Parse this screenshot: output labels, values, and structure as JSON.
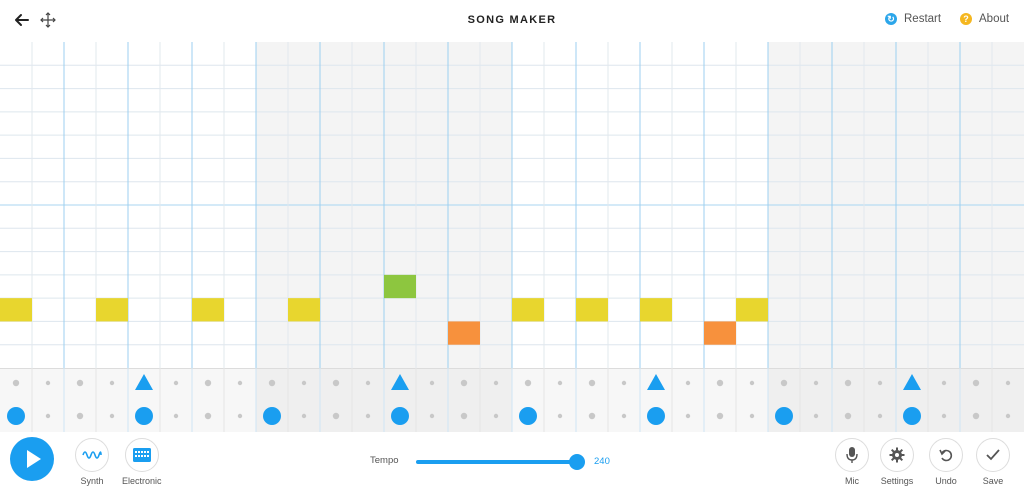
{
  "header": {
    "title": "SONG MAKER",
    "restart_label": "Restart",
    "about_label": "About",
    "back_icon": "arrow-left-icon",
    "move_icon": "move-arrows-icon"
  },
  "controls": {
    "play_icon": "play-icon",
    "instrument_label": "Synth",
    "percussion_label": "Electronic",
    "tempo_label": "Tempo",
    "tempo_value": "240",
    "tempo_fraction": 0.95,
    "mic_label": "Mic",
    "settings_label": "Settings",
    "undo_label": "Undo",
    "save_label": "Save"
  },
  "grid": {
    "columns": 32,
    "melody_rows": 14,
    "shaded_bars": [
      2,
      3,
      6,
      7
    ],
    "notes": [
      {
        "col": 0,
        "row": 11,
        "color": "#e8d62e"
      },
      {
        "col": 3,
        "row": 11,
        "color": "#e8d62e"
      },
      {
        "col": 6,
        "row": 11,
        "color": "#e8d62e"
      },
      {
        "col": 9,
        "row": 11,
        "color": "#e8d62e"
      },
      {
        "col": 12,
        "row": 10,
        "color": "#8dc63f"
      },
      {
        "col": 14,
        "row": 12,
        "color": "#f7913d"
      },
      {
        "col": 16,
        "row": 11,
        "color": "#e8d62e"
      },
      {
        "col": 18,
        "row": 11,
        "color": "#e8d62e"
      },
      {
        "col": 20,
        "row": 11,
        "color": "#e8d62e"
      },
      {
        "col": 22,
        "row": 12,
        "color": "#f7913d"
      },
      {
        "col": 23,
        "row": 11,
        "color": "#e8d62e"
      }
    ],
    "rhythm_triangles": [
      4,
      12,
      20,
      28
    ],
    "rhythm_circles": [
      0,
      4,
      8,
      12,
      16,
      20,
      24,
      28
    ]
  },
  "colors": {
    "accent": "#1a9ef0",
    "yellow": "#e8d62e",
    "green": "#8dc63f",
    "orange": "#f7913d"
  }
}
